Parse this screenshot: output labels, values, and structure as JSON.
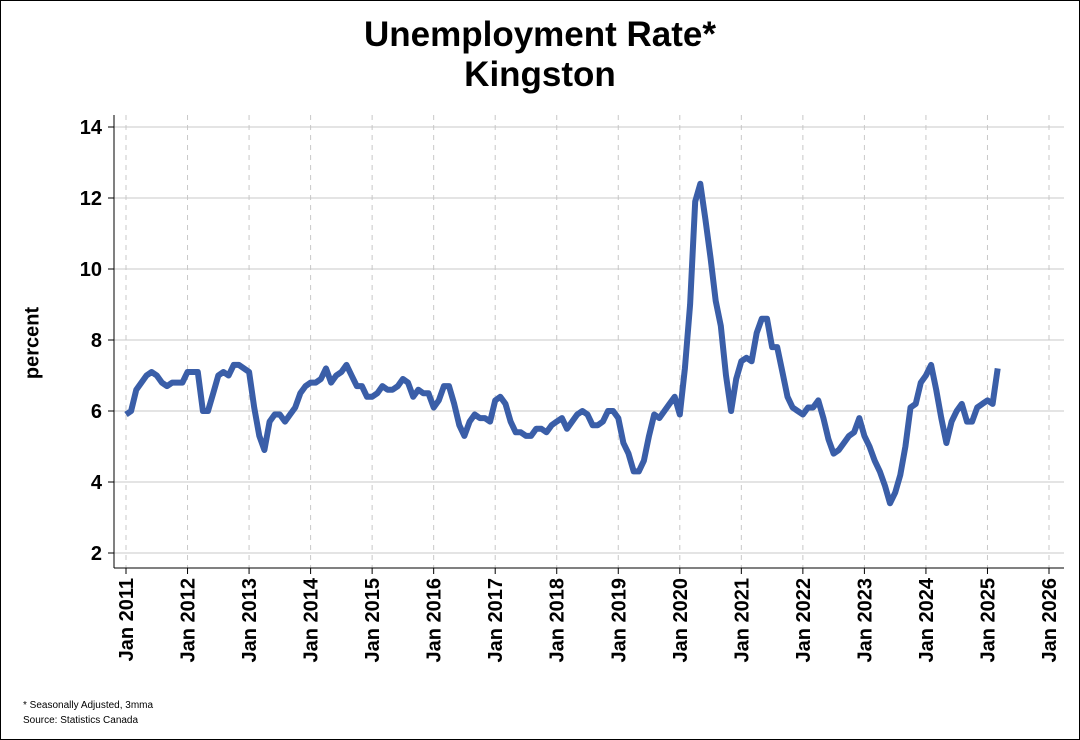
{
  "chart_data": {
    "type": "line",
    "title": "Unemployment Rate*",
    "subtitle": "Kingston",
    "ylabel": "percent",
    "xlabel": "",
    "ylim": [
      2,
      14
    ],
    "yticks": [
      2,
      4,
      6,
      8,
      10,
      12,
      14
    ],
    "xlim": [
      2011,
      2026
    ],
    "xticks": [
      {
        "value": 2011,
        "label": "Jan 2011"
      },
      {
        "value": 2012,
        "label": "Jan 2012"
      },
      {
        "value": 2013,
        "label": "Jan 2013"
      },
      {
        "value": 2014,
        "label": "Jan 2014"
      },
      {
        "value": 2015,
        "label": "Jan 2015"
      },
      {
        "value": 2016,
        "label": "Jan 2016"
      },
      {
        "value": 2017,
        "label": "Jan 2017"
      },
      {
        "value": 2018,
        "label": "Jan 2018"
      },
      {
        "value": 2019,
        "label": "Jan 2019"
      },
      {
        "value": 2020,
        "label": "Jan 2020"
      },
      {
        "value": 2021,
        "label": "Jan 2021"
      },
      {
        "value": 2022,
        "label": "Jan 2022"
      },
      {
        "value": 2023,
        "label": "Jan 2023"
      },
      {
        "value": 2024,
        "label": "Jan 2024"
      },
      {
        "value": 2025,
        "label": "Jan 2025"
      },
      {
        "value": 2026,
        "label": "Jan 2026"
      }
    ],
    "grid": {
      "horizontal": true,
      "vertical": "dashed"
    },
    "series": [
      {
        "color": "#3a5ea8",
        "start": "2011-01",
        "frequency": "monthly",
        "values": [
          5.9,
          6.0,
          6.6,
          6.8,
          7.0,
          7.1,
          7.0,
          6.8,
          6.7,
          6.8,
          6.8,
          6.8,
          7.1,
          7.1,
          7.1,
          6.0,
          6.0,
          6.5,
          7.0,
          7.1,
          7.0,
          7.3,
          7.3,
          7.2,
          7.1,
          6.1,
          5.3,
          4.9,
          5.7,
          5.9,
          5.9,
          5.7,
          5.9,
          6.1,
          6.5,
          6.7,
          6.8,
          6.8,
          6.9,
          7.2,
          6.8,
          7.0,
          7.1,
          7.3,
          7.0,
          6.7,
          6.7,
          6.4,
          6.4,
          6.5,
          6.7,
          6.6,
          6.6,
          6.7,
          6.9,
          6.8,
          6.4,
          6.6,
          6.5,
          6.5,
          6.1,
          6.3,
          6.7,
          6.7,
          6.2,
          5.6,
          5.3,
          5.7,
          5.9,
          5.8,
          5.8,
          5.7,
          6.3,
          6.4,
          6.2,
          5.7,
          5.4,
          5.4,
          5.3,
          5.3,
          5.5,
          5.5,
          5.4,
          5.6,
          5.7,
          5.8,
          5.5,
          5.7,
          5.9,
          6.0,
          5.9,
          5.6,
          5.6,
          5.7,
          6.0,
          6.0,
          5.8,
          5.1,
          4.8,
          4.3,
          4.3,
          4.6,
          5.3,
          5.9,
          5.8,
          6.0,
          6.2,
          6.4,
          5.9,
          7.2,
          9.0,
          11.9,
          12.4,
          11.4,
          10.3,
          9.1,
          8.4,
          7.0,
          6.0,
          6.9,
          7.4,
          7.5,
          7.4,
          8.2,
          8.6,
          8.6,
          7.8,
          7.8,
          7.1,
          6.4,
          6.1,
          6.0,
          5.9,
          6.1,
          6.1,
          6.3,
          5.8,
          5.2,
          4.8,
          4.9,
          5.1,
          5.3,
          5.4,
          5.8,
          5.3,
          5.0,
          4.6,
          4.3,
          3.9,
          3.4,
          3.7,
          4.2,
          5.0,
          6.1,
          6.2,
          6.8,
          7.0,
          7.3,
          6.6,
          5.8,
          5.1,
          5.7,
          6.0,
          6.2,
          5.7,
          5.7,
          6.1,
          6.2,
          6.3,
          6.2,
          7.2
        ]
      }
    ]
  },
  "footnotes": {
    "note": "* Seasonally Adjusted, 3mma",
    "source": "Source: Statistics Canada"
  }
}
